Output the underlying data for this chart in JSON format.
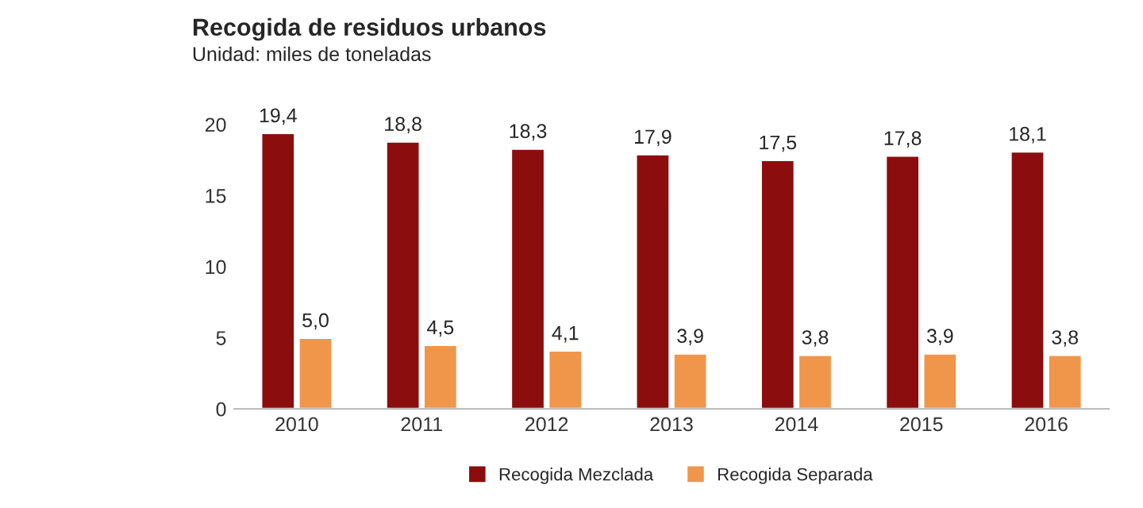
{
  "chart_data": {
    "type": "bar",
    "title": "Recogida de residuos urbanos",
    "subtitle": "Unidad: miles de toneladas",
    "categories": [
      "2010",
      "2011",
      "2012",
      "2013",
      "2014",
      "2015",
      "2016"
    ],
    "series": [
      {
        "name": "Recogida Mezclada",
        "color": "#8b0d0d",
        "values": [
          19.4,
          18.8,
          18.3,
          17.9,
          17.5,
          17.8,
          18.1
        ],
        "value_labels": [
          "19,4",
          "18,8",
          "18,3",
          "17,9",
          "17,5",
          "17,8",
          "18,1"
        ]
      },
      {
        "name": "Recogida Separada",
        "color": "#f0964b",
        "values": [
          5.0,
          4.5,
          4.1,
          3.9,
          3.8,
          3.9,
          3.8
        ],
        "value_labels": [
          "5,0",
          "4,5",
          "4,1",
          "3,9",
          "3,8",
          "3,9",
          "3,8"
        ]
      }
    ],
    "ylim": [
      0,
      20
    ],
    "yticks": [
      0,
      5,
      10,
      15,
      20
    ],
    "grid": false,
    "legend": "bottom"
  }
}
